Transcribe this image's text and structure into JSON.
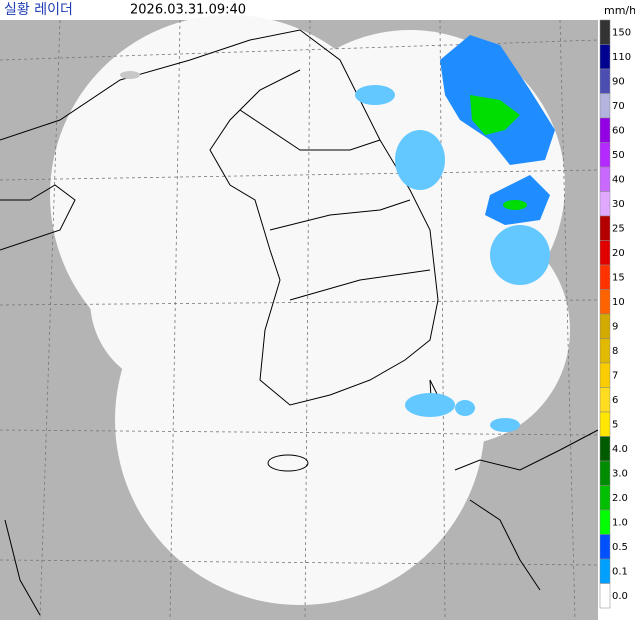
{
  "header": {
    "title": "실황 레이더",
    "timestamp": "2026.03.31.09:40",
    "unit": "mm/h"
  },
  "legend": [
    {
      "label": "150",
      "color": "#333333"
    },
    {
      "label": "110",
      "color": "#000390"
    },
    {
      "label": "90",
      "color": "#4c4eb1"
    },
    {
      "label": "70",
      "color": "#b3b4de"
    },
    {
      "label": "60",
      "color": "#9300e4"
    },
    {
      "label": "50",
      "color": "#b329ff"
    },
    {
      "label": "40",
      "color": "#c969ff"
    },
    {
      "label": "30",
      "color": "#e0a9ff"
    },
    {
      "label": "25",
      "color": "#b40000"
    },
    {
      "label": "20",
      "color": "#e00000"
    },
    {
      "label": "15",
      "color": "#ff3200"
    },
    {
      "label": "10",
      "color": "#ff6300"
    },
    {
      "label": "9",
      "color": "#d2aa00"
    },
    {
      "label": "8",
      "color": "#e0b900"
    },
    {
      "label": "7",
      "color": "#f9cd00"
    },
    {
      "label": "6",
      "color": "#ffdc1f"
    },
    {
      "label": "5",
      "color": "#ffe600"
    },
    {
      "label": "4.0",
      "color": "#005a00"
    },
    {
      "label": "3.0",
      "color": "#008c00"
    },
    {
      "label": "2.0",
      "color": "#00be00"
    },
    {
      "label": "1.0",
      "color": "#00ff00"
    },
    {
      "label": "0.5",
      "color": "#0050ff"
    },
    {
      "label": "0.1",
      "color": "#00a0ff"
    },
    {
      "label": "0.0",
      "color": "#ffffff"
    }
  ]
}
